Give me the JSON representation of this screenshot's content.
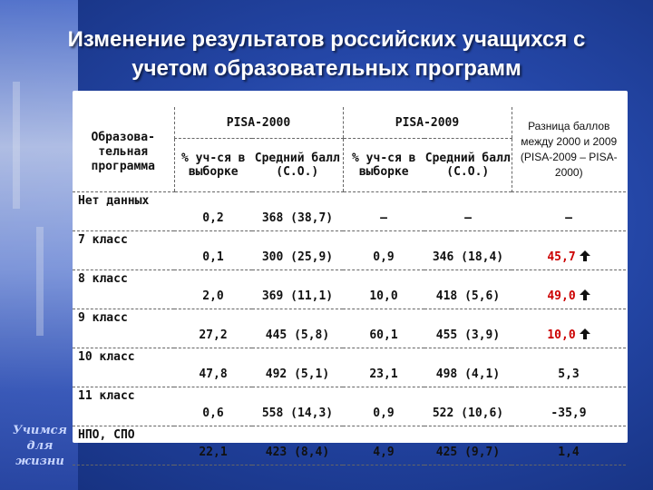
{
  "title": "Изменение результатов российских учащихся с учетом образовательных программ",
  "tagline": "Учимся для жизни",
  "table": {
    "program_header": "Образова-тельная программа",
    "pisa2000": "PISA-2000",
    "pisa2009": "PISA-2009",
    "diff_header": "Разница баллов между 2000 и 2009 (PISA-2009 – PISA-2000)",
    "sub_share": "% уч-ся в выборке",
    "sub_score": "Средний балл (С.О.)",
    "rows": [
      {
        "program": "Нет данных",
        "share2000": "0,2",
        "score2000": "368 (38,7)",
        "share2009": "–",
        "score2009": "–",
        "diff": "–",
        "up": false,
        "highlight": false
      },
      {
        "program": "7 класс",
        "share2000": "0,1",
        "score2000": "300 (25,9)",
        "share2009": "0,9",
        "score2009": "346 (18,4)",
        "diff": "45,7",
        "up": true,
        "highlight": true
      },
      {
        "program": "8 класс",
        "share2000": "2,0",
        "score2000": "369 (11,1)",
        "share2009": "10,0",
        "score2009": "418 (5,6)",
        "diff": "49,0",
        "up": true,
        "highlight": true
      },
      {
        "program": "9 класс",
        "share2000": "27,2",
        "score2000": "445 (5,8)",
        "share2009": "60,1",
        "score2009": "455 (3,9)",
        "diff": "10,0",
        "up": true,
        "highlight": true
      },
      {
        "program": "10 класс",
        "share2000": "47,8",
        "score2000": "492 (5,1)",
        "share2009": "23,1",
        "score2009": "498 (4,1)",
        "diff": "5,3",
        "up": false,
        "highlight": false
      },
      {
        "program": "11 класс",
        "share2000": "0,6",
        "score2000": "558 (14,3)",
        "share2009": "0,9",
        "score2009": "522 (10,6)",
        "diff": "-35,9",
        "up": false,
        "highlight": false
      },
      {
        "program": "НПО, СПО",
        "share2000": "22,1",
        "score2000": "423 (8,4)",
        "share2009": "4,9",
        "score2009": "425 (9,7)",
        "diff": "1,4",
        "up": false,
        "highlight": false
      }
    ]
  },
  "colors": {
    "highlight": "#cc0000",
    "background": "#2446a6"
  }
}
